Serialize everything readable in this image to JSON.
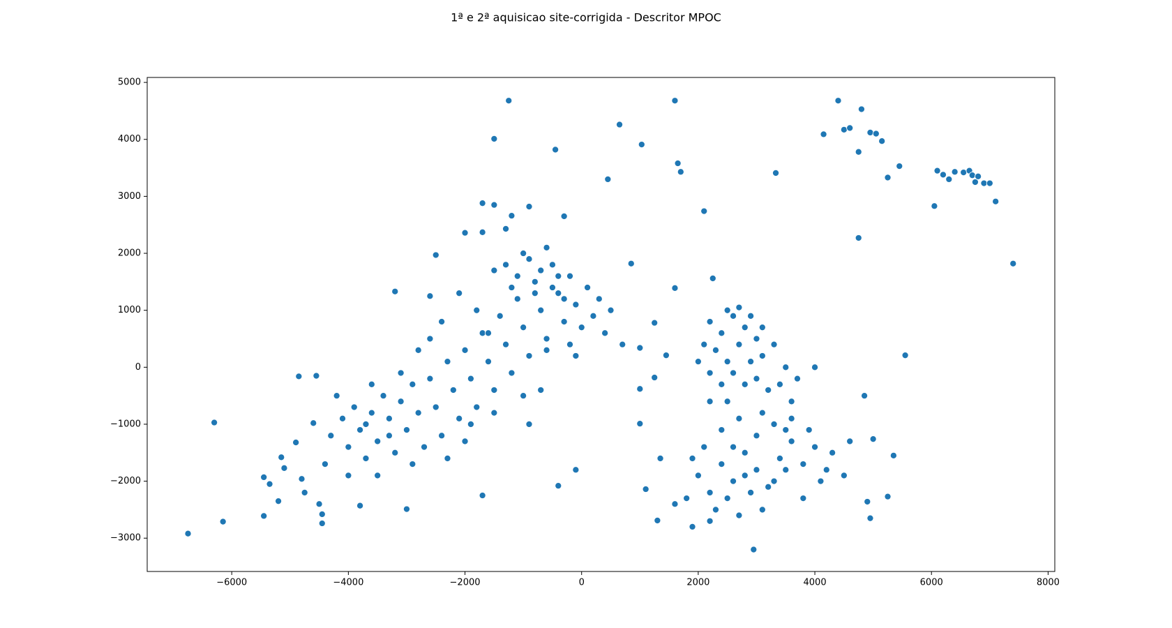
{
  "chart_data": {
    "type": "scatter",
    "title": "1ª e 2ª aquisicao site-corrigida - Descritor MPOC",
    "color": "#1f77b4",
    "xlim": [
      -7450,
      8115
    ],
    "ylim": [
      -3585,
      5087
    ],
    "xticks": [
      {
        "value": -6000,
        "label": "−6000"
      },
      {
        "value": -4000,
        "label": "−4000"
      },
      {
        "value": -2000,
        "label": "−2000"
      },
      0,
      2000,
      4000,
      6000,
      8000
    ],
    "yticks": [
      {
        "value": -3000,
        "label": "−3000"
      },
      {
        "value": -2000,
        "label": "−2000"
      },
      {
        "value": -1000,
        "label": "−1000"
      },
      0,
      1000,
      2000,
      3000,
      4000,
      5000
    ],
    "x": [
      -6750,
      -6300,
      -6150,
      -5450,
      -5450,
      -5350,
      -5200,
      -5150,
      -5100,
      -4900,
      -4850,
      -4800,
      -4750,
      -4550,
      -4500,
      -4450,
      -4450,
      -4600,
      -1250,
      -1500,
      -450,
      650,
      1030,
      450,
      1600,
      1650,
      1700,
      2100,
      3330,
      4400,
      4800,
      4150,
      4500,
      4600,
      4750,
      4950,
      5050,
      5150,
      5250,
      5450,
      6050,
      6100,
      6200,
      6300,
      6400,
      6550,
      6650,
      6700,
      6750,
      6800,
      6900,
      7000,
      7100,
      7400,
      4750,
      5550,
      1600,
      2250,
      -1700,
      -1500,
      -900,
      -300,
      -1200,
      -1300,
      -2000,
      -1700,
      -2500,
      -3200,
      -2600,
      850,
      -1700,
      -400,
      -100,
      -3000,
      -3800,
      1300,
      2950,
      4900,
      4950,
      5250,
      5350,
      5000,
      4850,
      4000,
      1450,
      1000,
      1000,
      1100,
      1350,
      1250,
      1000,
      1250,
      -4300,
      -4100,
      -4000,
      -3900,
      -3800,
      -3700,
      -3600,
      -3500,
      -3400,
      -3300,
      -3200,
      -3100,
      -3000,
      -2900,
      -2800,
      -2700,
      -2600,
      -2500,
      -2400,
      -2300,
      -2200,
      -2100,
      -2000,
      -1900,
      -1800,
      -1700,
      -1600,
      -1500,
      -1400,
      -1300,
      -1200,
      -1100,
      -1000,
      -900,
      -800,
      -700,
      -600,
      -500,
      -400,
      -300,
      -200,
      -100,
      0,
      100,
      200,
      -1300,
      -1100,
      -900,
      -700,
      -500,
      -300,
      -1500,
      -1000,
      -600,
      -800,
      -400,
      -1200,
      300,
      400,
      -2600,
      -2800,
      -3100,
      -3600,
      -4200,
      -4400,
      -4000,
      -3500,
      -2900,
      -2300,
      -1900,
      -1500,
      -1000,
      -600,
      -200,
      -2100,
      -1800,
      -2400,
      -3300,
      -3700,
      -2000,
      -1600,
      -700,
      -900,
      500,
      700,
      -100,
      2200,
      2400,
      2600,
      2800,
      3000,
      2300,
      2500,
      2700,
      2900,
      3100,
      2200,
      2400,
      2600,
      2800,
      3000,
      3200,
      3400,
      3600,
      2500,
      2700,
      2900,
      3100,
      3300,
      3500,
      3700,
      2100,
      2000,
      2000,
      2200,
      2400,
      2600,
      2800,
      3000,
      3200,
      3400,
      3600,
      3800,
      4000,
      4200,
      2300,
      2500,
      2700,
      2900,
      3100,
      3300,
      3500,
      2100,
      2400,
      2700,
      3000,
      3300,
      3600,
      3900,
      4300,
      4500,
      1900,
      2200,
      1800,
      2600,
      3100,
      3500,
      2800,
      2500,
      2200,
      1900,
      1600,
      4600,
      3800,
      4100
    ],
    "values": [
      -2920,
      -970,
      -2710,
      -1930,
      -2610,
      -2050,
      -2350,
      -1580,
      -1770,
      -1320,
      -160,
      -1960,
      -2200,
      -150,
      -2400,
      -2740,
      -2580,
      -980,
      4680,
      4010,
      3820,
      4260,
      3910,
      3300,
      4680,
      3580,
      3430,
      2740,
      3410,
      4680,
      4530,
      4090,
      4170,
      4200,
      3780,
      4120,
      4100,
      3970,
      3330,
      3530,
      2830,
      3450,
      3380,
      3300,
      3430,
      3420,
      3450,
      3370,
      3250,
      3350,
      3230,
      3230,
      2910,
      1820,
      2270,
      210,
      1390,
      1560,
      2880,
      2850,
      2820,
      2650,
      2660,
      2430,
      2360,
      2370,
      1970,
      1330,
      1250,
      1820,
      -2250,
      -2080,
      -1800,
      -2490,
      -2430,
      -2690,
      -3200,
      -2360,
      -2650,
      -2270,
      -1550,
      -1260,
      -500,
      0,
      210,
      -990,
      -380,
      -2140,
      -1600,
      -180,
      340,
      780,
      -1200,
      -900,
      -1400,
      -700,
      -1100,
      -1600,
      -800,
      -1300,
      -500,
      -900,
      -1500,
      -600,
      -1100,
      -300,
      -800,
      -1400,
      -200,
      -700,
      -1200,
      100,
      -400,
      -900,
      300,
      -200,
      -700,
      600,
      100,
      -400,
      900,
      400,
      -100,
      1200,
      700,
      200,
      1500,
      1000,
      500,
      1800,
      1300,
      800,
      1600,
      1100,
      700,
      1400,
      900,
      1800,
      1600,
      1900,
      1700,
      1400,
      1200,
      1700,
      2000,
      2100,
      1300,
      1600,
      1400,
      1200,
      600,
      500,
      300,
      -100,
      -300,
      -500,
      -1700,
      -1900,
      -1900,
      -1700,
      -1600,
      -1000,
      -800,
      -500,
      300,
      400,
      1300,
      1000,
      800,
      -1200,
      -1000,
      -1300,
      600,
      -400,
      -1000,
      1000,
      400,
      200,
      800,
      600,
      900,
      700,
      500,
      300,
      100,
      400,
      100,
      200,
      -100,
      -300,
      -100,
      -300,
      -200,
      -400,
      -300,
      -600,
      1000,
      1050,
      900,
      700,
      400,
      0,
      -200,
      400,
      100,
      -1900,
      -2200,
      -1700,
      -2000,
      -1500,
      -1800,
      -2100,
      -1600,
      -1300,
      -1700,
      -1400,
      -1800,
      -2500,
      -2300,
      -2600,
      -2200,
      -2500,
      -2000,
      -1800,
      -1400,
      -1100,
      -900,
      -1200,
      -1000,
      -900,
      -1100,
      -1500,
      -1900,
      -2800,
      -2700,
      -2300,
      -1400,
      -800,
      -1100,
      -1900,
      -600,
      -600,
      -1600,
      -2400,
      -1300,
      -2300,
      -2000
    ]
  }
}
